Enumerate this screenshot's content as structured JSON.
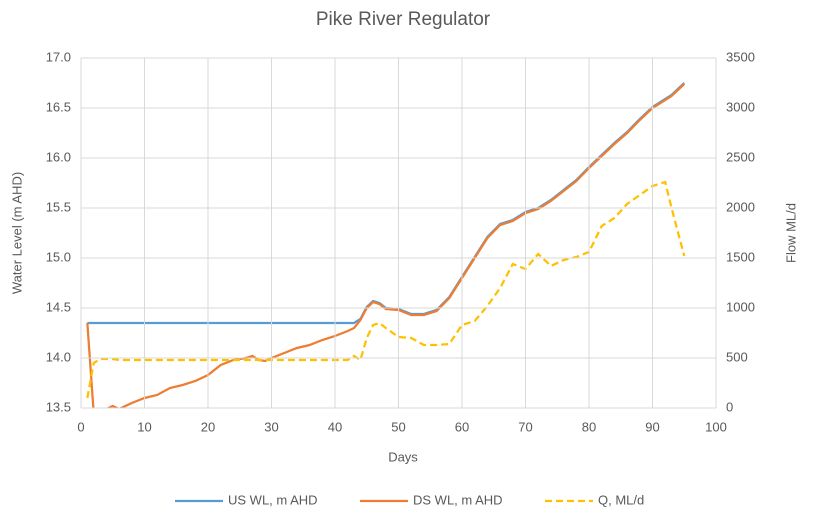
{
  "chart_data": {
    "type": "line",
    "title": "Pike River Regulator",
    "x_label": "Days",
    "y_label": "Water Level (m AHD)",
    "y2_label": "Flow ML/d",
    "x": [
      1,
      2,
      3,
      4,
      5,
      6,
      8,
      10,
      12,
      14,
      16,
      18,
      20,
      22,
      24,
      26,
      27,
      28,
      29,
      30,
      32,
      34,
      36,
      38,
      40,
      42,
      43,
      44,
      45,
      46,
      47,
      48,
      50,
      52,
      54,
      56,
      58,
      60,
      62,
      64,
      66,
      68,
      70,
      72,
      74,
      76,
      78,
      80,
      82,
      84,
      86,
      88,
      90,
      92,
      93,
      95
    ],
    "series": [
      {
        "name": "US WL, m AHD",
        "color": "#5b9bd5",
        "values": [
          14.35,
          14.35,
          14.35,
          14.35,
          14.35,
          14.35,
          14.35,
          14.35,
          14.35,
          14.35,
          14.35,
          14.35,
          14.35,
          14.35,
          14.35,
          14.35,
          14.35,
          14.35,
          14.35,
          14.35,
          14.35,
          14.35,
          14.35,
          14.35,
          14.35,
          14.35,
          14.35,
          14.39,
          14.51,
          14.57,
          14.55,
          14.5,
          14.49,
          14.44,
          14.44,
          14.48,
          14.61,
          14.81,
          15.01,
          15.21,
          15.34,
          15.38,
          15.46,
          15.5,
          15.58,
          15.68,
          15.78,
          15.91,
          16.03,
          16.15,
          16.26,
          16.39,
          16.51,
          16.59,
          16.63,
          16.75
        ]
      },
      {
        "name": "DS WL, m AHD",
        "color": "#ed7d31",
        "values": [
          14.35,
          13.45,
          13.47,
          13.49,
          13.52,
          13.49,
          13.55,
          13.6,
          13.63,
          13.7,
          13.73,
          13.77,
          13.83,
          13.93,
          13.98,
          14.0,
          14.02,
          13.98,
          13.97,
          14.0,
          14.05,
          14.1,
          14.13,
          14.18,
          14.22,
          14.27,
          14.3,
          14.38,
          14.5,
          14.56,
          14.54,
          14.49,
          14.48,
          14.43,
          14.43,
          14.47,
          14.6,
          14.8,
          15.0,
          15.2,
          15.33,
          15.37,
          15.45,
          15.49,
          15.57,
          15.67,
          15.77,
          15.9,
          16.02,
          16.14,
          16.25,
          16.38,
          16.5,
          16.58,
          16.62,
          16.74
        ]
      },
      {
        "name": "Q, ML/d",
        "color": "#ffc000",
        "dashed": true,
        "axis": "y2",
        "values": [
          100,
          450,
          490,
          490,
          490,
          480,
          480,
          480,
          480,
          480,
          480,
          480,
          480,
          480,
          480,
          480,
          480,
          480,
          480,
          480,
          480,
          480,
          480,
          480,
          480,
          480,
          520,
          480,
          700,
          830,
          850,
          800,
          710,
          700,
          630,
          630,
          640,
          830,
          870,
          1020,
          1200,
          1440,
          1390,
          1540,
          1420,
          1480,
          1510,
          1560,
          1820,
          1900,
          2040,
          2130,
          2220,
          2260,
          2000,
          1520
        ]
      }
    ],
    "xlim": [
      0,
      100
    ],
    "xticks": [
      0,
      10,
      20,
      30,
      40,
      50,
      60,
      70,
      80,
      90,
      100
    ],
    "ylim": [
      13.5,
      17.0
    ],
    "yticks": [
      {
        "value": 13.5,
        "label": "13.5"
      },
      {
        "value": 14.0,
        "label": "14.0"
      },
      {
        "value": 14.5,
        "label": "14.5"
      },
      {
        "value": 15.0,
        "label": "15.0"
      },
      {
        "value": 15.5,
        "label": "15.5"
      },
      {
        "value": 16.0,
        "label": "16.0"
      },
      {
        "value": 16.5,
        "label": "16.5"
      },
      {
        "value": 17.0,
        "label": "17.0"
      }
    ],
    "y2lim": [
      0,
      3500
    ],
    "y2ticks": [
      0,
      500,
      1000,
      1500,
      2000,
      2500,
      3000,
      3500
    ],
    "grid": true,
    "legend": "bottom"
  }
}
